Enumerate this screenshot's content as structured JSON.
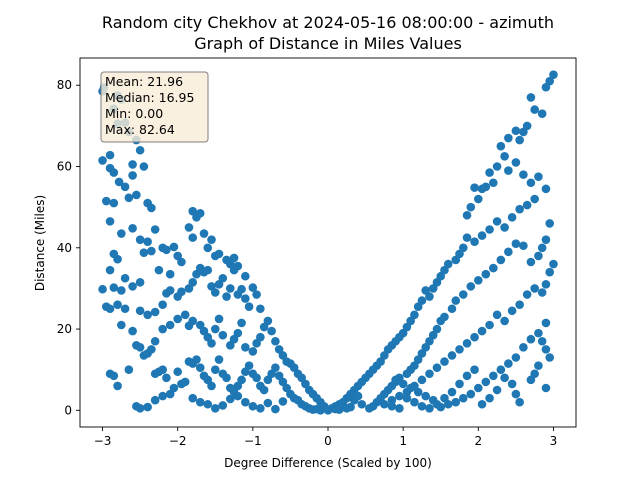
{
  "chart_data": {
    "type": "scatter",
    "title": "Random city Chekhov at 2024-05-16 08:00:00  - azimuth",
    "subtitle": "Graph of Distance in Miles Values",
    "xlabel": "Degree Difference (Scaled by 100)",
    "ylabel": "Distance (Miles)",
    "xlim": [
      -3.3,
      3.3
    ],
    "ylim": [
      -4.1,
      86.7
    ],
    "xticks": [
      -3,
      -2,
      -1,
      0,
      1,
      2,
      3
    ],
    "yticks": [
      0,
      20,
      40,
      60,
      80
    ],
    "grid": false,
    "marker_color": "#1f77b4",
    "stats": [
      {
        "label": "Mean: 21.96"
      },
      {
        "label": "Median: 16.95"
      },
      {
        "label": "Min: 0.00"
      },
      {
        "label": "Max: 82.64"
      }
    ],
    "stats_box_color": "#f9ecd7",
    "points": [
      [
        -3.0,
        78.5
      ],
      [
        -2.98,
        79.5
      ],
      [
        -2.8,
        77.5
      ],
      [
        -2.75,
        76.5
      ],
      [
        -2.85,
        74.2
      ],
      [
        -2.8,
        70.5
      ],
      [
        -2.7,
        70.8
      ],
      [
        -2.65,
        68.5
      ],
      [
        -2.55,
        66.5
      ],
      [
        -2.5,
        64.0
      ],
      [
        -2.6,
        60.5
      ],
      [
        -2.45,
        60.0
      ],
      [
        -2.9,
        62.8
      ],
      [
        -3.0,
        61.5
      ],
      [
        -2.9,
        59.6
      ],
      [
        -2.85,
        58.5
      ],
      [
        -2.78,
        56.2
      ],
      [
        -2.7,
        55.0
      ],
      [
        -2.6,
        57.8
      ],
      [
        -2.55,
        53.0
      ],
      [
        -2.65,
        52.3
      ],
      [
        -2.4,
        51.0
      ],
      [
        -2.35,
        49.8
      ],
      [
        -2.95,
        51.5
      ],
      [
        -2.85,
        51.0
      ],
      [
        -2.9,
        46.5
      ],
      [
        -2.75,
        43.5
      ],
      [
        -2.6,
        44.8
      ],
      [
        -2.5,
        42.0
      ],
      [
        -2.4,
        41.5
      ],
      [
        -2.3,
        44.5
      ],
      [
        -2.35,
        39.2
      ],
      [
        -2.45,
        38.8
      ],
      [
        -2.2,
        40.0
      ],
      [
        -2.15,
        39.5
      ],
      [
        -2.05,
        40.2
      ],
      [
        -2.0,
        38.0
      ],
      [
        -1.95,
        36.5
      ],
      [
        -2.1,
        33.5
      ],
      [
        -2.25,
        34.5
      ],
      [
        -2.8,
        37.2
      ],
      [
        -2.85,
        38.5
      ],
      [
        -2.9,
        34.5
      ],
      [
        -2.7,
        32.5
      ],
      [
        -2.85,
        30.2
      ],
      [
        -3.0,
        29.8
      ],
      [
        -2.75,
        29.5
      ],
      [
        -2.6,
        30.5
      ],
      [
        -2.5,
        31.5
      ],
      [
        -2.95,
        25.5
      ],
      [
        -2.8,
        26.0
      ],
      [
        -2.7,
        25.0
      ],
      [
        -2.9,
        25.0
      ],
      [
        -2.5,
        24.5
      ],
      [
        -2.4,
        23.5
      ],
      [
        -2.3,
        24.2
      ],
      [
        -2.2,
        26.0
      ],
      [
        -2.15,
        28.8
      ],
      [
        -2.1,
        29.5
      ],
      [
        -2.0,
        28.0
      ],
      [
        -1.95,
        29.2
      ],
      [
        -1.85,
        30.0
      ],
      [
        -1.8,
        31.5
      ],
      [
        -1.75,
        33.5
      ],
      [
        -1.7,
        35.0
      ],
      [
        -1.65,
        34.0
      ],
      [
        -1.6,
        34.5
      ],
      [
        -1.55,
        30.5
      ],
      [
        -1.5,
        29.0
      ],
      [
        -1.45,
        31.0
      ],
      [
        -1.4,
        32.5
      ],
      [
        -1.35,
        28.0
      ],
      [
        -1.3,
        30.0
      ],
      [
        -1.25,
        34.5
      ],
      [
        -1.2,
        28.5
      ],
      [
        -1.15,
        29.8
      ],
      [
        -1.1,
        27.5
      ],
      [
        -1.05,
        25.5
      ],
      [
        -1.0,
        30.2
      ],
      [
        -0.95,
        28.5
      ],
      [
        -0.9,
        25.0
      ],
      [
        -1.8,
        49.0
      ],
      [
        -1.75,
        47.5
      ],
      [
        -1.7,
        48.5
      ],
      [
        -1.85,
        45.0
      ],
      [
        -1.8,
        42.5
      ],
      [
        -1.65,
        43.5
      ],
      [
        -1.6,
        40.0
      ],
      [
        -1.55,
        42.0
      ],
      [
        -1.5,
        38.0
      ],
      [
        -1.45,
        38.5
      ],
      [
        -1.35,
        37.0
      ],
      [
        -1.3,
        36.0
      ],
      [
        -1.25,
        37.5
      ],
      [
        -1.2,
        35.5
      ],
      [
        -1.1,
        33.0
      ],
      [
        -2.75,
        21.0
      ],
      [
        -2.6,
        19.5
      ],
      [
        -2.55,
        16.0
      ],
      [
        -2.5,
        15.5
      ],
      [
        -2.45,
        13.5
      ],
      [
        -2.4,
        14.0
      ],
      [
        -2.35,
        15.0
      ],
      [
        -2.3,
        17.0
      ],
      [
        -2.2,
        20.0
      ],
      [
        -2.1,
        21.0
      ],
      [
        -2.0,
        22.5
      ],
      [
        -1.9,
        23.5
      ],
      [
        -1.85,
        20.8
      ],
      [
        -1.8,
        22.0
      ],
      [
        -1.7,
        21.0
      ],
      [
        -1.65,
        19.5
      ],
      [
        -1.6,
        18.0
      ],
      [
        -1.55,
        16.5
      ],
      [
        -1.5,
        20.0
      ],
      [
        -1.45,
        22.5
      ],
      [
        -1.4,
        18.5
      ],
      [
        -1.3,
        16.0
      ],
      [
        -1.25,
        17.5
      ],
      [
        -1.2,
        19.0
      ],
      [
        -1.15,
        21.5
      ],
      [
        -1.1,
        15.5
      ],
      [
        -1.0,
        14.5
      ],
      [
        -0.95,
        16.5
      ],
      [
        -0.9,
        18.0
      ],
      [
        -0.85,
        20.5
      ],
      [
        -0.8,
        22.0
      ],
      [
        -0.75,
        19.5
      ],
      [
        -0.7,
        17.0
      ],
      [
        -0.65,
        15.0
      ],
      [
        -0.6,
        13.5
      ],
      [
        -0.55,
        12.0
      ],
      [
        -0.5,
        11.5
      ],
      [
        -0.45,
        10.5
      ],
      [
        -0.4,
        9.0
      ],
      [
        -0.35,
        8.0
      ],
      [
        -0.3,
        6.5
      ],
      [
        -0.25,
        5.0
      ],
      [
        -0.2,
        4.0
      ],
      [
        -0.15,
        3.0
      ],
      [
        -0.1,
        2.0
      ],
      [
        -0.05,
        1.0
      ],
      [
        -2.3,
        9.0
      ],
      [
        -2.25,
        9.5
      ],
      [
        -2.2,
        10.0
      ],
      [
        -2.15,
        8.0
      ],
      [
        -2.0,
        9.5
      ],
      [
        -1.95,
        6.5
      ],
      [
        -1.9,
        7.0
      ],
      [
        -1.85,
        12.0
      ],
      [
        -1.8,
        11.5
      ],
      [
        -1.75,
        12.5
      ],
      [
        -1.7,
        10.5
      ],
      [
        -1.65,
        8.5
      ],
      [
        -1.6,
        7.5
      ],
      [
        -1.55,
        6.0
      ],
      [
        -1.5,
        10.0
      ],
      [
        -1.45,
        12.5
      ],
      [
        -1.4,
        9.0
      ],
      [
        -1.35,
        8.0
      ],
      [
        -1.3,
        5.5
      ],
      [
        -1.25,
        4.5
      ],
      [
        -1.2,
        6.0
      ],
      [
        -1.15,
        7.5
      ],
      [
        -1.1,
        9.5
      ],
      [
        -1.05,
        11.0
      ],
      [
        -1.0,
        9.0
      ],
      [
        -0.95,
        8.0
      ],
      [
        -0.9,
        6.0
      ],
      [
        -0.85,
        5.0
      ],
      [
        -0.8,
        7.5
      ],
      [
        -0.75,
        9.0
      ],
      [
        -0.7,
        10.5
      ],
      [
        -0.65,
        8.5
      ],
      [
        -0.6,
        7.0
      ],
      [
        -0.55,
        5.5
      ],
      [
        -0.5,
        4.0
      ],
      [
        -0.45,
        3.0
      ],
      [
        -0.4,
        2.5
      ],
      [
        -0.35,
        1.5
      ],
      [
        -0.3,
        1.0
      ],
      [
        -0.25,
        0.5
      ],
      [
        -2.9,
        9.0
      ],
      [
        -2.85,
        8.5
      ],
      [
        -2.8,
        6.0
      ],
      [
        -2.65,
        10.0
      ],
      [
        -2.55,
        1.0
      ],
      [
        -2.5,
        0.5
      ],
      [
        -2.4,
        0.8
      ],
      [
        -2.3,
        2.5
      ],
      [
        -2.2,
        3.5
      ],
      [
        -2.1,
        4.0
      ],
      [
        -2.05,
        5.5
      ],
      [
        -1.8,
        3.0
      ],
      [
        -1.7,
        2.0
      ],
      [
        -1.6,
        1.5
      ],
      [
        -1.5,
        0.5
      ],
      [
        -1.4,
        1.2
      ],
      [
        -1.3,
        2.8
      ],
      [
        -1.2,
        3.5
      ],
      [
        -1.1,
        2.0
      ],
      [
        -1.0,
        1.0
      ],
      [
        -0.9,
        0.5
      ],
      [
        -0.8,
        1.8
      ],
      [
        -0.7,
        0.3
      ],
      [
        -0.6,
        2.2
      ],
      [
        -0.2,
        0.2
      ],
      [
        -0.15,
        0.3
      ],
      [
        -0.1,
        0.0
      ],
      [
        0.0,
        0.0
      ],
      [
        3.0,
        82.6
      ],
      [
        2.95,
        81.0
      ],
      [
        2.9,
        79.5
      ],
      [
        2.85,
        73.0
      ],
      [
        2.7,
        77.0
      ],
      [
        2.75,
        74.0
      ],
      [
        2.65,
        70.0
      ],
      [
        2.6,
        68.5
      ],
      [
        2.5,
        68.8
      ],
      [
        2.55,
        66.5
      ],
      [
        2.4,
        67.0
      ],
      [
        2.3,
        65.0
      ],
      [
        2.35,
        62.5
      ],
      [
        2.25,
        60.0
      ],
      [
        2.15,
        58.5
      ],
      [
        2.2,
        56.0
      ],
      [
        2.1,
        55.0
      ],
      [
        2.05,
        54.5
      ],
      [
        1.95,
        54.8
      ],
      [
        2.0,
        52.0
      ],
      [
        1.9,
        50.0
      ],
      [
        1.85,
        48.0
      ],
      [
        2.4,
        59.0
      ],
      [
        2.5,
        61.0
      ],
      [
        2.6,
        58.0
      ],
      [
        2.7,
        56.0
      ],
      [
        2.8,
        57.5
      ],
      [
        2.9,
        54.5
      ],
      [
        2.75,
        52.0
      ],
      [
        2.65,
        50.5
      ],
      [
        2.55,
        49.5
      ],
      [
        2.45,
        47.5
      ],
      [
        2.35,
        45.0
      ],
      [
        2.25,
        46.5
      ],
      [
        2.15,
        44.5
      ],
      [
        2.05,
        43.0
      ],
      [
        1.95,
        41.5
      ],
      [
        1.85,
        42.5
      ],
      [
        1.8,
        40.0
      ],
      [
        1.75,
        38.5
      ],
      [
        1.7,
        37.0
      ],
      [
        1.6,
        36.0
      ],
      [
        1.55,
        34.5
      ],
      [
        1.5,
        33.0
      ],
      [
        1.45,
        31.5
      ],
      [
        1.4,
        30.0
      ],
      [
        1.35,
        28.0
      ],
      [
        1.3,
        29.5
      ],
      [
        1.25,
        27.0
      ],
      [
        1.2,
        25.5
      ],
      [
        1.15,
        23.5
      ],
      [
        1.1,
        22.0
      ],
      [
        1.05,
        20.5
      ],
      [
        1.0,
        19.0
      ],
      [
        0.95,
        18.0
      ],
      [
        0.9,
        17.0
      ],
      [
        0.85,
        16.0
      ],
      [
        0.8,
        15.0
      ],
      [
        0.75,
        13.5
      ],
      [
        0.7,
        12.0
      ],
      [
        0.65,
        11.0
      ],
      [
        0.6,
        10.0
      ],
      [
        0.55,
        9.0
      ],
      [
        0.5,
        8.0
      ],
      [
        0.45,
        7.0
      ],
      [
        0.4,
        6.0
      ],
      [
        0.35,
        5.0
      ],
      [
        0.3,
        4.0
      ],
      [
        0.25,
        3.0
      ],
      [
        0.2,
        2.0
      ],
      [
        0.15,
        1.5
      ],
      [
        0.1,
        1.0
      ],
      [
        0.05,
        0.5
      ],
      [
        2.9,
        42.0
      ],
      [
        2.95,
        46.0
      ],
      [
        2.85,
        40.0
      ],
      [
        2.8,
        38.0
      ],
      [
        2.7,
        36.5
      ],
      [
        2.6,
        40.5
      ],
      [
        2.5,
        41.0
      ],
      [
        2.4,
        39.0
      ],
      [
        2.3,
        37.0
      ],
      [
        2.2,
        35.0
      ],
      [
        2.1,
        33.5
      ],
      [
        2.0,
        32.0
      ],
      [
        1.9,
        30.5
      ],
      [
        1.8,
        28.5
      ],
      [
        1.7,
        27.0
      ],
      [
        1.65,
        25.0
      ],
      [
        1.55,
        23.0
      ],
      [
        1.5,
        22.0
      ],
      [
        1.45,
        20.0
      ],
      [
        1.4,
        18.5
      ],
      [
        1.35,
        17.0
      ],
      [
        1.3,
        15.5
      ],
      [
        1.25,
        14.0
      ],
      [
        1.2,
        12.5
      ],
      [
        1.15,
        11.0
      ],
      [
        1.1,
        10.0
      ],
      [
        1.05,
        9.0
      ],
      [
        0.95,
        8.0
      ],
      [
        0.9,
        7.0
      ],
      [
        0.85,
        6.0
      ],
      [
        0.8,
        5.0
      ],
      [
        0.75,
        4.0
      ],
      [
        0.7,
        3.0
      ],
      [
        0.65,
        2.0
      ],
      [
        0.6,
        1.0
      ],
      [
        3.0,
        36.0
      ],
      [
        2.95,
        34.0
      ],
      [
        2.9,
        31.0
      ],
      [
        2.85,
        29.0
      ],
      [
        2.75,
        30.0
      ],
      [
        2.65,
        28.5
      ],
      [
        2.55,
        26.0
      ],
      [
        2.45,
        24.5
      ],
      [
        2.35,
        22.0
      ],
      [
        2.25,
        23.5
      ],
      [
        2.15,
        21.0
      ],
      [
        2.05,
        19.5
      ],
      [
        1.95,
        18.0
      ],
      [
        1.85,
        16.5
      ],
      [
        1.75,
        15.0
      ],
      [
        1.65,
        13.5
      ],
      [
        1.55,
        12.0
      ],
      [
        1.45,
        10.5
      ],
      [
        1.35,
        9.0
      ],
      [
        1.25,
        7.5
      ],
      [
        1.15,
        6.0
      ],
      [
        1.05,
        4.5
      ],
      [
        0.95,
        3.5
      ],
      [
        0.85,
        2.5
      ],
      [
        0.75,
        1.5
      ],
      [
        2.9,
        21.5
      ],
      [
        2.8,
        19.0
      ],
      [
        2.7,
        17.5
      ],
      [
        2.6,
        15.5
      ],
      [
        2.5,
        13.0
      ],
      [
        2.4,
        11.5
      ],
      [
        2.3,
        10.0
      ],
      [
        2.2,
        8.5
      ],
      [
        2.1,
        7.0
      ],
      [
        2.0,
        5.5
      ],
      [
        1.9,
        4.0
      ],
      [
        1.8,
        3.0
      ],
      [
        1.7,
        2.0
      ],
      [
        1.6,
        1.5
      ],
      [
        1.5,
        0.8
      ],
      [
        1.4,
        2.5
      ],
      [
        1.3,
        3.5
      ],
      [
        1.2,
        4.5
      ],
      [
        1.1,
        5.5
      ],
      [
        1.0,
        6.5
      ],
      [
        0.9,
        7.5
      ],
      [
        2.95,
        13.0
      ],
      [
        2.9,
        15.0
      ],
      [
        2.85,
        17.0
      ],
      [
        2.8,
        11.0
      ],
      [
        2.75,
        9.0
      ],
      [
        2.7,
        7.5
      ],
      [
        2.55,
        2.0
      ],
      [
        2.5,
        4.0
      ],
      [
        2.45,
        6.5
      ],
      [
        2.35,
        8.0
      ],
      [
        2.25,
        5.0
      ],
      [
        2.15,
        3.0
      ],
      [
        2.05,
        1.5
      ],
      [
        2.9,
        5.5
      ],
      [
        1.95,
        10.0
      ],
      [
        1.85,
        8.5
      ],
      [
        1.75,
        6.5
      ],
      [
        1.65,
        4.5
      ],
      [
        1.55,
        3.0
      ],
      [
        1.45,
        1.5
      ],
      [
        1.35,
        0.5
      ],
      [
        1.25,
        1.0
      ],
      [
        1.15,
        2.0
      ],
      [
        1.05,
        3.0
      ],
      [
        0.95,
        0.5
      ],
      [
        0.85,
        1.0
      ],
      [
        0.55,
        0.5
      ],
      [
        0.45,
        1.5
      ],
      [
        0.35,
        2.5
      ],
      [
        0.25,
        0.5
      ],
      [
        0.2,
        0.8
      ],
      [
        0.15,
        0.2
      ],
      [
        0.1,
        0.3
      ],
      [
        0.3,
        0.8
      ],
      [
        0.4,
        3.5
      ]
    ]
  }
}
